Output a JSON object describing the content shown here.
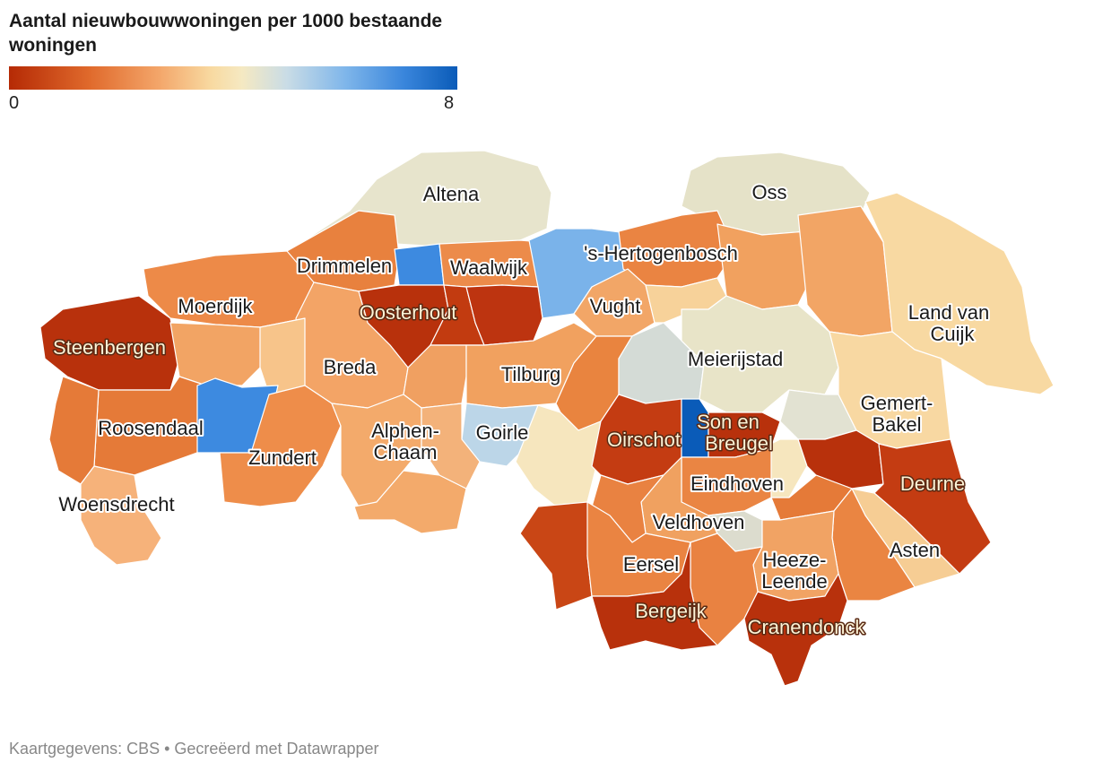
{
  "title": "Aantal nieuwbouwwoningen per 1000 bestaande woningen",
  "legend": {
    "min": "0",
    "max": "8",
    "colors": [
      "#b52a05",
      "#e06a2c",
      "#f3a468",
      "#f8d9a0",
      "#f5e9c2",
      "#c9dce6",
      "#7fb6ea",
      "#3a86dc",
      "#0a5bb8"
    ]
  },
  "footer": "Kaartgegevens: CBS • Gecreëerd met Datawrapper",
  "labels": {
    "altena": "Altena",
    "oss": "Oss",
    "drimmelen": "Drimmelen",
    "waalwijk": "Waalwijk",
    "hertogenbosch": "'s-Hertogenbosch",
    "moerdijk": "Moerdijk",
    "oosterhout": "Oosterhout",
    "vught": "Vught",
    "land_van_cuijk_1": "Land van",
    "land_van_cuijk_2": "Cuijk",
    "steenbergen": "Steenbergen",
    "breda": "Breda",
    "tilburg": "Tilburg",
    "meierijstad": "Meierijstad",
    "roosendaal": "Roosendaal",
    "gemert_1": "Gemert-",
    "gemert_2": "Bakel",
    "alphen_1": "Alphen-",
    "alphen_2": "Chaam",
    "goirle": "Goirle",
    "oirschot": "Oirschot",
    "son_1": "Son en",
    "son_2": "Breugel",
    "zundert": "Zundert",
    "eindhoven": "Eindhoven",
    "deurne": "Deurne",
    "woensdrecht": "Woensdrecht",
    "veldhoven": "Veldhoven",
    "asten": "Asten",
    "eersel": "Eersel",
    "heeze_1": "Heeze-",
    "heeze_2": "Leende",
    "bergeijk": "Bergeijk",
    "cranendonck": "Cranendonck"
  }
}
